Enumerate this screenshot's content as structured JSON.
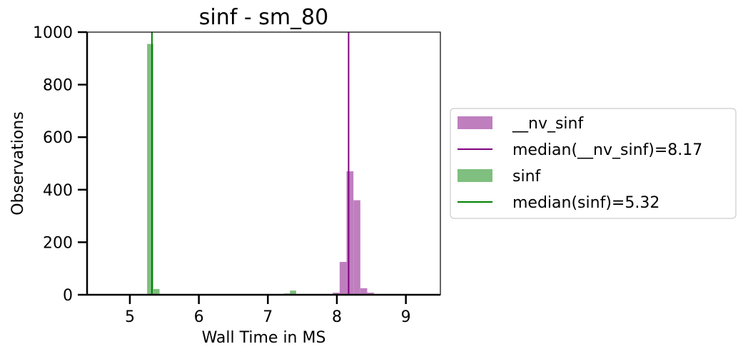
{
  "chart_data": {
    "type": "bar",
    "title": "sinf - sm_80",
    "xlabel": "Wall Time in MS",
    "ylabel": "Observations",
    "xlim": [
      4.38,
      9.5
    ],
    "ylim": [
      0,
      1000
    ],
    "xticks": [
      "5",
      "6",
      "7",
      "8",
      "9"
    ],
    "xtick_values": [
      5,
      6,
      7,
      8,
      9
    ],
    "yticks": [
      "0",
      "200",
      "400",
      "600",
      "800",
      "1000"
    ],
    "ytick_values": [
      0,
      200,
      400,
      600,
      800,
      1000
    ],
    "grid": false,
    "legend_placement": "outside-right",
    "colors": {
      "nv_sinf_bar": "#bf7fbf",
      "nv_sinf_median": "#800080",
      "sinf_bar": "#7fbf7f",
      "sinf_median": "#008000"
    },
    "series": [
      {
        "name": "__nv_sinf",
        "kind": "histogram",
        "bins": [
          {
            "x0": 7.74,
            "x1": 7.84,
            "value": 2
          },
          {
            "x0": 7.84,
            "x1": 7.94,
            "value": 2
          },
          {
            "x0": 7.94,
            "x1": 8.04,
            "value": 8
          },
          {
            "x0": 8.04,
            "x1": 8.14,
            "value": 125
          },
          {
            "x0": 8.14,
            "x1": 8.24,
            "value": 470
          },
          {
            "x0": 8.24,
            "x1": 8.34,
            "value": 360
          },
          {
            "x0": 8.34,
            "x1": 8.44,
            "value": 25
          },
          {
            "x0": 8.44,
            "x1": 8.54,
            "value": 8
          },
          {
            "x0": 8.54,
            "x1": 8.64,
            "value": 2
          },
          {
            "x0": 8.74,
            "x1": 8.84,
            "value": 3
          },
          {
            "x0": 8.84,
            "x1": 8.94,
            "value": 1
          }
        ]
      },
      {
        "name": "median(__nv_sinf)=8.17",
        "kind": "vline",
        "x": 8.17
      },
      {
        "name": "sinf",
        "kind": "histogram",
        "bins": [
          {
            "x0": 5.25,
            "x1": 5.34,
            "value": 955
          },
          {
            "x0": 5.34,
            "x1": 5.43,
            "value": 22
          },
          {
            "x0": 6.69,
            "x1": 6.78,
            "value": 2
          },
          {
            "x0": 7.23,
            "x1": 7.32,
            "value": 5
          },
          {
            "x0": 7.32,
            "x1": 7.41,
            "value": 16
          }
        ]
      },
      {
        "name": "median(sinf)=5.32",
        "kind": "vline",
        "x": 5.32
      }
    ],
    "legend": [
      {
        "label": "__nv_sinf",
        "kind": "patch",
        "color": "#bf7fbf"
      },
      {
        "label": "median(__nv_sinf)=8.17",
        "kind": "line",
        "color": "#800080"
      },
      {
        "label": "sinf",
        "kind": "patch",
        "color": "#7fbf7f"
      },
      {
        "label": "median(sinf)=5.32",
        "kind": "line",
        "color": "#008000"
      }
    ]
  }
}
